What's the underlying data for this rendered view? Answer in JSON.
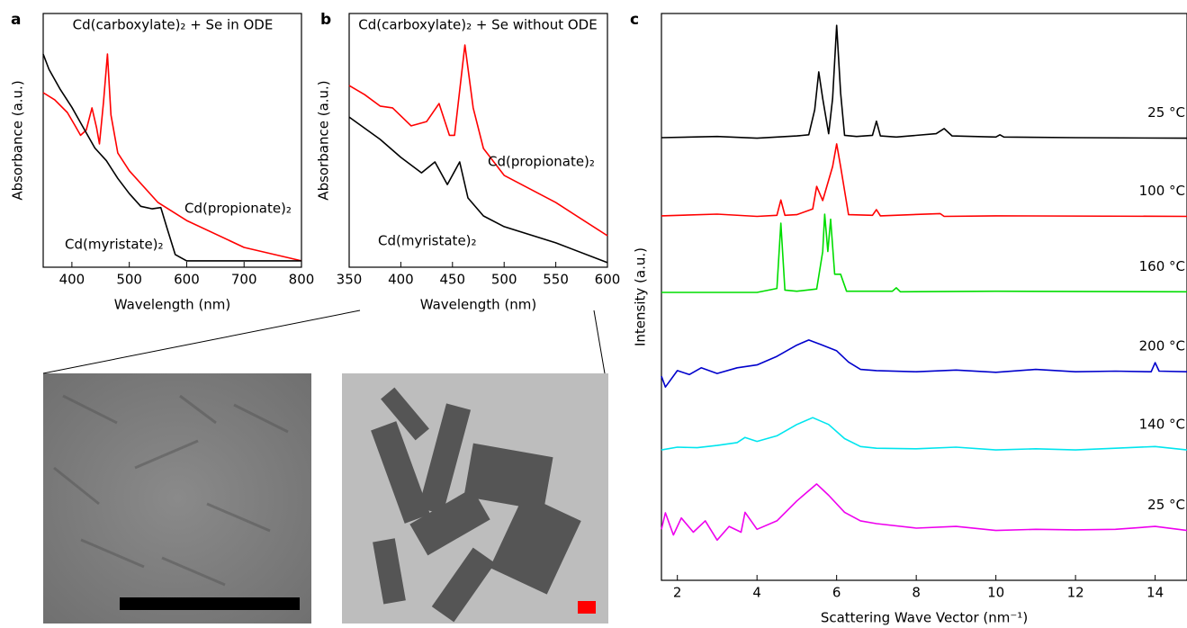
{
  "chart_data": [
    {
      "type": "line",
      "panel_label": "a",
      "title": "Cd(carboxylate)₂ + Se in ODE",
      "xlabel": "Wavelength (nm)",
      "ylabel": "Absorbance (a.u.)",
      "xlim": [
        350,
        800
      ],
      "ylim": [
        0,
        100
      ],
      "xticks": [
        400,
        500,
        600,
        700,
        800
      ],
      "series": [
        {
          "name": "Cd(propionate)₂",
          "color": "#ff0000",
          "x": [
            350,
            370,
            392,
            405,
            415,
            425,
            435,
            443,
            448,
            455,
            462,
            468,
            480,
            500,
            550,
            600,
            700,
            800
          ],
          "values": [
            68.8,
            66,
            61,
            56,
            52,
            54,
            62.8,
            55,
            48.6,
            65,
            84,
            60,
            45,
            38,
            25.5,
            18.4,
            7.8,
            2.5
          ]
        },
        {
          "name": "Cd(myristate)₂",
          "color": "#000000",
          "x": [
            350,
            360,
            380,
            400,
            420,
            440,
            460,
            480,
            500,
            520,
            540,
            555,
            565,
            580,
            600,
            700,
            800
          ],
          "values": [
            84,
            78,
            70,
            63,
            55,
            47,
            42,
            35,
            29,
            24,
            23,
            23.5,
            16,
            5,
            2.5,
            2.5,
            2.5
          ]
        }
      ]
    },
    {
      "type": "line",
      "panel_label": "b",
      "title": "Cd(carboxylate)₂ + Se without ODE",
      "xlabel": "Wavelength (nm)",
      "ylabel": "Absorbance (a.u.)",
      "xlim": [
        350,
        600
      ],
      "ylim": [
        0,
        100
      ],
      "xticks": [
        350,
        400,
        450,
        500,
        550,
        600
      ],
      "series": [
        {
          "name": "Cd(propionate)₂",
          "color": "#ff0000",
          "x": [
            350,
            365,
            380,
            392,
            410,
            425,
            437,
            447,
            452,
            462,
            470,
            480,
            500,
            550,
            600
          ],
          "values": [
            71.6,
            68,
            63.5,
            62.8,
            55.7,
            57.4,
            64.5,
            52,
            52,
            87.6,
            62.8,
            46.8,
            36.2,
            25.5,
            12.4
          ]
        },
        {
          "name": "Cd(myristate)₂",
          "color": "#000000",
          "x": [
            350,
            380,
            400,
            420,
            433,
            445,
            457,
            465,
            480,
            500,
            550,
            600
          ],
          "values": [
            59.2,
            50.4,
            43.3,
            37.2,
            41.5,
            32.6,
            41.5,
            27.3,
            20.2,
            16,
            9.6,
            1.8
          ]
        }
      ]
    },
    {
      "type": "line",
      "panel_label": "c",
      "xlabel": "Scattering Wave Vector (nm⁻¹)",
      "ylabel": "Intensity (a.u.)",
      "xlim": [
        1.6,
        14.8
      ],
      "ylim": [
        0,
        100
      ],
      "xticks": [
        2,
        4,
        6,
        8,
        10,
        12,
        14
      ],
      "series": [
        {
          "name": "25 °C",
          "color": "#000000",
          "x": [
            1.6,
            3,
            4,
            5,
            5.3,
            5.45,
            5.55,
            5.65,
            5.8,
            5.9,
            6.0,
            6.1,
            6.2,
            6.5,
            6.9,
            7.0,
            7.1,
            7.5,
            8.5,
            8.7,
            8.9,
            10,
            10.1,
            10.2,
            12,
            14.8
          ],
          "values": [
            78.1,
            78.3,
            78.0,
            78.4,
            78.6,
            83,
            89.7,
            85,
            78.8,
            85,
            97.9,
            86,
            78.5,
            78.3,
            78.5,
            81.0,
            78.4,
            78.2,
            78.8,
            79.7,
            78.4,
            78.2,
            78.6,
            78.2,
            78.1,
            78.0
          ]
        },
        {
          "name": "100 °C",
          "color": "#ff0000",
          "x": [
            1.6,
            3,
            4,
            4.5,
            4.6,
            4.7,
            5.0,
            5.4,
            5.5,
            5.65,
            5.9,
            6.0,
            6.1,
            6.3,
            6.9,
            7.0,
            7.1,
            8.6,
            8.7,
            10,
            14.8
          ],
          "values": [
            64.3,
            64.6,
            64.2,
            64.4,
            67.1,
            64.4,
            64.5,
            65.5,
            69.5,
            67,
            73,
            77.0,
            73,
            64.5,
            64.4,
            65.4,
            64.3,
            64.7,
            64.2,
            64.3,
            64.2
          ]
        },
        {
          "name": "160 °C",
          "color": "#00dd00",
          "x": [
            1.6,
            4,
            4.5,
            4.6,
            4.7,
            5.0,
            5.5,
            5.65,
            5.7,
            5.78,
            5.85,
            5.95,
            6.1,
            6.25,
            7.4,
            7.5,
            7.6,
            10,
            14.8
          ],
          "values": [
            50.8,
            50.8,
            51.5,
            63.0,
            51.2,
            51,
            51.4,
            58,
            64.6,
            58,
            63.7,
            54,
            54,
            51,
            51,
            51.6,
            50.9,
            51,
            50.9
          ]
        },
        {
          "name": "200 °C",
          "color": "#0000cc",
          "x": [
            1.6,
            1.7,
            2,
            2.3,
            2.6,
            3,
            3.5,
            4,
            4.5,
            5,
            5.3,
            5.6,
            6,
            6.3,
            6.6,
            7,
            8,
            9,
            10,
            11,
            12,
            13,
            13.9,
            14,
            14.1,
            14.8
          ],
          "values": [
            36.0,
            34.1,
            37.0,
            36.3,
            37.5,
            36.5,
            37.5,
            38.0,
            39.5,
            41.5,
            42.4,
            41.6,
            40.5,
            38.5,
            37.2,
            37.0,
            36.8,
            37.1,
            36.7,
            37.2,
            36.8,
            36.9,
            36.8,
            38.4,
            36.9,
            36.8
          ]
        },
        {
          "name": "140 °C",
          "color": "#00e5ee",
          "x": [
            1.6,
            2,
            2.5,
            3,
            3.5,
            3.7,
            4,
            4.5,
            5,
            5.4,
            5.8,
            6.2,
            6.6,
            7,
            8,
            9,
            10,
            11,
            12,
            13,
            14,
            14.8
          ],
          "values": [
            23,
            23.5,
            23.4,
            23.8,
            24.3,
            25.2,
            24.5,
            25.5,
            27.5,
            28.7,
            27.5,
            25,
            23.6,
            23.3,
            23.2,
            23.5,
            23,
            23.2,
            23,
            23.3,
            23.6,
            23
          ]
        },
        {
          "name": "25 °C",
          "color": "#ee00ee",
          "x": [
            1.6,
            1.7,
            1.9,
            2.1,
            2.4,
            2.7,
            3,
            3.3,
            3.6,
            3.7,
            4,
            4.5,
            5,
            5.5,
            5.8,
            6.2,
            6.6,
            7,
            8,
            9,
            10,
            11,
            12,
            13,
            14,
            14.8
          ],
          "values": [
            9,
            11.9,
            8,
            11,
            8.5,
            10.5,
            7.1,
            9.5,
            8.5,
            12,
            9,
            10.5,
            14,
            17,
            15,
            12,
            10.5,
            10,
            9.2,
            9.5,
            8.8,
            9,
            8.9,
            9,
            9.5,
            8.8
          ]
        }
      ]
    }
  ]
}
